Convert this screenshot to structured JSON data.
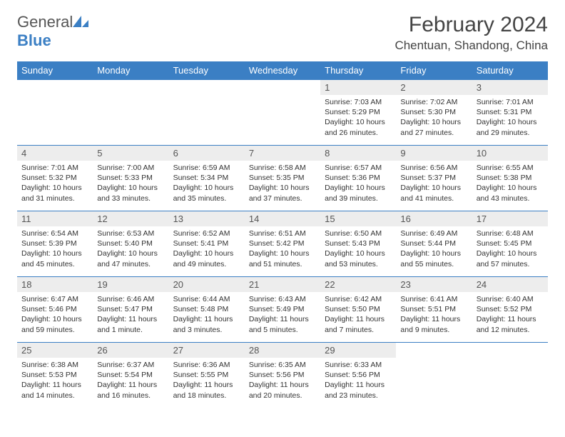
{
  "brand": {
    "general": "General",
    "blue": "Blue"
  },
  "title": "February 2024",
  "location": "Chentuan, Shandong, China",
  "colors": {
    "header_bg": "#3b7fc4",
    "daynum_bg": "#ededed",
    "text": "#333333"
  },
  "weekdays": [
    "Sunday",
    "Monday",
    "Tuesday",
    "Wednesday",
    "Thursday",
    "Friday",
    "Saturday"
  ],
  "weeks": [
    [
      {
        "n": "",
        "sr": "",
        "ss": "",
        "dl": ""
      },
      {
        "n": "",
        "sr": "",
        "ss": "",
        "dl": ""
      },
      {
        "n": "",
        "sr": "",
        "ss": "",
        "dl": ""
      },
      {
        "n": "",
        "sr": "",
        "ss": "",
        "dl": ""
      },
      {
        "n": "1",
        "sr": "Sunrise: 7:03 AM",
        "ss": "Sunset: 5:29 PM",
        "dl": "Daylight: 10 hours and 26 minutes."
      },
      {
        "n": "2",
        "sr": "Sunrise: 7:02 AM",
        "ss": "Sunset: 5:30 PM",
        "dl": "Daylight: 10 hours and 27 minutes."
      },
      {
        "n": "3",
        "sr": "Sunrise: 7:01 AM",
        "ss": "Sunset: 5:31 PM",
        "dl": "Daylight: 10 hours and 29 minutes."
      }
    ],
    [
      {
        "n": "4",
        "sr": "Sunrise: 7:01 AM",
        "ss": "Sunset: 5:32 PM",
        "dl": "Daylight: 10 hours and 31 minutes."
      },
      {
        "n": "5",
        "sr": "Sunrise: 7:00 AM",
        "ss": "Sunset: 5:33 PM",
        "dl": "Daylight: 10 hours and 33 minutes."
      },
      {
        "n": "6",
        "sr": "Sunrise: 6:59 AM",
        "ss": "Sunset: 5:34 PM",
        "dl": "Daylight: 10 hours and 35 minutes."
      },
      {
        "n": "7",
        "sr": "Sunrise: 6:58 AM",
        "ss": "Sunset: 5:35 PM",
        "dl": "Daylight: 10 hours and 37 minutes."
      },
      {
        "n": "8",
        "sr": "Sunrise: 6:57 AM",
        "ss": "Sunset: 5:36 PM",
        "dl": "Daylight: 10 hours and 39 minutes."
      },
      {
        "n": "9",
        "sr": "Sunrise: 6:56 AM",
        "ss": "Sunset: 5:37 PM",
        "dl": "Daylight: 10 hours and 41 minutes."
      },
      {
        "n": "10",
        "sr": "Sunrise: 6:55 AM",
        "ss": "Sunset: 5:38 PM",
        "dl": "Daylight: 10 hours and 43 minutes."
      }
    ],
    [
      {
        "n": "11",
        "sr": "Sunrise: 6:54 AM",
        "ss": "Sunset: 5:39 PM",
        "dl": "Daylight: 10 hours and 45 minutes."
      },
      {
        "n": "12",
        "sr": "Sunrise: 6:53 AM",
        "ss": "Sunset: 5:40 PM",
        "dl": "Daylight: 10 hours and 47 minutes."
      },
      {
        "n": "13",
        "sr": "Sunrise: 6:52 AM",
        "ss": "Sunset: 5:41 PM",
        "dl": "Daylight: 10 hours and 49 minutes."
      },
      {
        "n": "14",
        "sr": "Sunrise: 6:51 AM",
        "ss": "Sunset: 5:42 PM",
        "dl": "Daylight: 10 hours and 51 minutes."
      },
      {
        "n": "15",
        "sr": "Sunrise: 6:50 AM",
        "ss": "Sunset: 5:43 PM",
        "dl": "Daylight: 10 hours and 53 minutes."
      },
      {
        "n": "16",
        "sr": "Sunrise: 6:49 AM",
        "ss": "Sunset: 5:44 PM",
        "dl": "Daylight: 10 hours and 55 minutes."
      },
      {
        "n": "17",
        "sr": "Sunrise: 6:48 AM",
        "ss": "Sunset: 5:45 PM",
        "dl": "Daylight: 10 hours and 57 minutes."
      }
    ],
    [
      {
        "n": "18",
        "sr": "Sunrise: 6:47 AM",
        "ss": "Sunset: 5:46 PM",
        "dl": "Daylight: 10 hours and 59 minutes."
      },
      {
        "n": "19",
        "sr": "Sunrise: 6:46 AM",
        "ss": "Sunset: 5:47 PM",
        "dl": "Daylight: 11 hours and 1 minute."
      },
      {
        "n": "20",
        "sr": "Sunrise: 6:44 AM",
        "ss": "Sunset: 5:48 PM",
        "dl": "Daylight: 11 hours and 3 minutes."
      },
      {
        "n": "21",
        "sr": "Sunrise: 6:43 AM",
        "ss": "Sunset: 5:49 PM",
        "dl": "Daylight: 11 hours and 5 minutes."
      },
      {
        "n": "22",
        "sr": "Sunrise: 6:42 AM",
        "ss": "Sunset: 5:50 PM",
        "dl": "Daylight: 11 hours and 7 minutes."
      },
      {
        "n": "23",
        "sr": "Sunrise: 6:41 AM",
        "ss": "Sunset: 5:51 PM",
        "dl": "Daylight: 11 hours and 9 minutes."
      },
      {
        "n": "24",
        "sr": "Sunrise: 6:40 AM",
        "ss": "Sunset: 5:52 PM",
        "dl": "Daylight: 11 hours and 12 minutes."
      }
    ],
    [
      {
        "n": "25",
        "sr": "Sunrise: 6:38 AM",
        "ss": "Sunset: 5:53 PM",
        "dl": "Daylight: 11 hours and 14 minutes."
      },
      {
        "n": "26",
        "sr": "Sunrise: 6:37 AM",
        "ss": "Sunset: 5:54 PM",
        "dl": "Daylight: 11 hours and 16 minutes."
      },
      {
        "n": "27",
        "sr": "Sunrise: 6:36 AM",
        "ss": "Sunset: 5:55 PM",
        "dl": "Daylight: 11 hours and 18 minutes."
      },
      {
        "n": "28",
        "sr": "Sunrise: 6:35 AM",
        "ss": "Sunset: 5:56 PM",
        "dl": "Daylight: 11 hours and 20 minutes."
      },
      {
        "n": "29",
        "sr": "Sunrise: 6:33 AM",
        "ss": "Sunset: 5:56 PM",
        "dl": "Daylight: 11 hours and 23 minutes."
      },
      {
        "n": "",
        "sr": "",
        "ss": "",
        "dl": ""
      },
      {
        "n": "",
        "sr": "",
        "ss": "",
        "dl": ""
      }
    ]
  ]
}
